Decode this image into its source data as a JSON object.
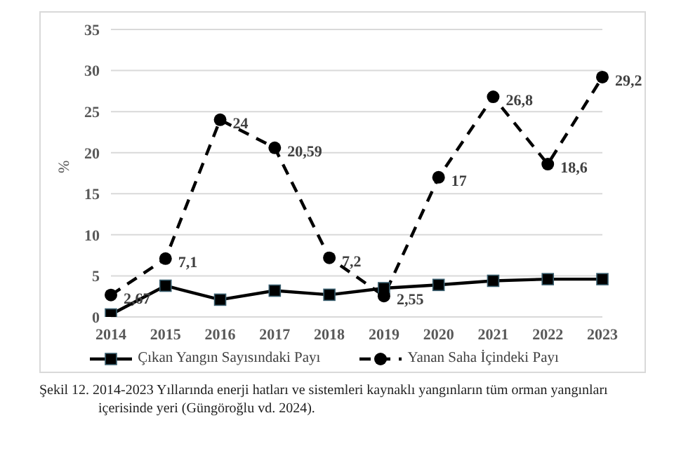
{
  "chart_data": {
    "type": "line",
    "ylabel": "%",
    "categories": [
      "2014",
      "2015",
      "2016",
      "2017",
      "2018",
      "2019",
      "2020",
      "2021",
      "2022",
      "2023"
    ],
    "series": [
      {
        "name": "Çıkan Yangın Sayısındaki Payı",
        "color": "#000000",
        "marker": "square",
        "line_style": "solid",
        "values": [
          0.3,
          3.8,
          2.1,
          3.2,
          2.7,
          3.5,
          3.9,
          4.4,
          4.6,
          4.6
        ]
      },
      {
        "name": "Yanan Saha İçindeki Payı",
        "color": "#000000",
        "marker": "circle",
        "line_style": "dashed",
        "values": [
          2.67,
          7.1,
          24,
          20.59,
          7.2,
          2.55,
          17,
          26.8,
          18.6,
          29.2
        ],
        "value_labels": [
          "2,67",
          "7,1",
          "24",
          "20,59",
          "7,2",
          "2,55",
          "17",
          "26,8",
          "18,6",
          "29,2"
        ]
      }
    ],
    "ylim": [
      0,
      35
    ],
    "yticks": [
      0,
      5,
      10,
      15,
      20,
      25,
      30,
      35
    ],
    "grid": "y",
    "legend": "bottom",
    "annotations": [
      "Şekil 12. 2014-2023 Yıllarında enerji hatları ve sistemleri kaynaklı yangınların tüm orman yangınları içerisinde yeri (Güngöroğlu vd. 2024)."
    ]
  }
}
